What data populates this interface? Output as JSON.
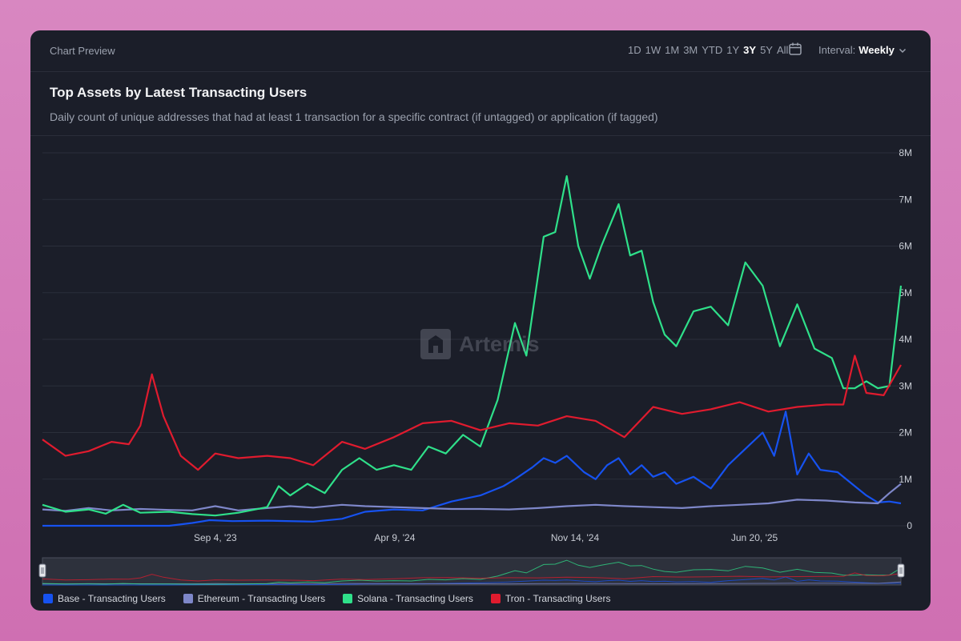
{
  "header": {
    "preview_label": "Chart Preview",
    "ranges": [
      "1D",
      "1W",
      "1M",
      "3M",
      "YTD",
      "1Y",
      "3Y",
      "5Y",
      "All"
    ],
    "active_range": "3Y",
    "interval_label": "Interval:",
    "interval_value": "Weekly"
  },
  "watermark": "Artemis",
  "chart_data": {
    "type": "line",
    "title": "Top Assets by Latest Transacting Users",
    "subtitle": "Daily count of unique addresses that had at least 1 transaction for a specific contract (if untagged) or application (if tagged)",
    "xlabel": "",
    "ylabel": "",
    "x_start": "2023-02-06",
    "x_end": "2025-12-15",
    "x_ticks": [
      {
        "date": "2023-09-04",
        "label": "Sep 4, '23"
      },
      {
        "date": "2024-04-09",
        "label": "Apr 9, '24"
      },
      {
        "date": "2024-11-14",
        "label": "Nov 14, '24"
      },
      {
        "date": "2025-06-20",
        "label": "Jun 20, '25"
      }
    ],
    "ylim": [
      0,
      8000000
    ],
    "y_ticks": [
      {
        "value": 0,
        "label": "0"
      },
      {
        "value": 1000000,
        "label": "1M"
      },
      {
        "value": 2000000,
        "label": "2M"
      },
      {
        "value": 3000000,
        "label": "3M"
      },
      {
        "value": 4000000,
        "label": "4M"
      },
      {
        "value": 5000000,
        "label": "5M"
      },
      {
        "value": 6000000,
        "label": "6M"
      },
      {
        "value": 7000000,
        "label": "7M"
      },
      {
        "value": 8000000,
        "label": "8M"
      }
    ],
    "grid": true,
    "legend_position": "bottom-left",
    "series": [
      {
        "name": "Base - Transacting Users",
        "color": "#1652f0",
        "points": [
          [
            "2023-02-06",
            0
          ],
          [
            "2023-07-10",
            0
          ],
          [
            "2023-08-07",
            60000
          ],
          [
            "2023-08-28",
            120000
          ],
          [
            "2023-09-25",
            100000
          ],
          [
            "2023-11-06",
            110000
          ],
          [
            "2024-01-01",
            90000
          ],
          [
            "2024-02-05",
            150000
          ],
          [
            "2024-03-04",
            300000
          ],
          [
            "2024-04-08",
            350000
          ],
          [
            "2024-05-13",
            330000
          ],
          [
            "2024-06-17",
            520000
          ],
          [
            "2024-07-22",
            650000
          ],
          [
            "2024-08-19",
            850000
          ],
          [
            "2024-09-02",
            1000000
          ],
          [
            "2024-09-23",
            1250000
          ],
          [
            "2024-10-07",
            1450000
          ],
          [
            "2024-10-21",
            1350000
          ],
          [
            "2024-11-04",
            1500000
          ],
          [
            "2024-11-25",
            1150000
          ],
          [
            "2024-12-09",
            1000000
          ],
          [
            "2024-12-23",
            1300000
          ],
          [
            "2025-01-06",
            1450000
          ],
          [
            "2025-01-20",
            1100000
          ],
          [
            "2025-02-03",
            1300000
          ],
          [
            "2025-02-17",
            1050000
          ],
          [
            "2025-03-03",
            1150000
          ],
          [
            "2025-03-17",
            900000
          ],
          [
            "2025-04-07",
            1050000
          ],
          [
            "2025-04-28",
            800000
          ],
          [
            "2025-05-19",
            1300000
          ],
          [
            "2025-06-09",
            1650000
          ],
          [
            "2025-06-30",
            2000000
          ],
          [
            "2025-07-14",
            1500000
          ],
          [
            "2025-07-28",
            2450000
          ],
          [
            "2025-08-11",
            1100000
          ],
          [
            "2025-08-25",
            1550000
          ],
          [
            "2025-09-08",
            1200000
          ],
          [
            "2025-09-29",
            1150000
          ],
          [
            "2025-10-20",
            850000
          ],
          [
            "2025-11-03",
            650000
          ],
          [
            "2025-11-17",
            500000
          ],
          [
            "2025-12-01",
            520000
          ],
          [
            "2025-12-15",
            480000
          ]
        ]
      },
      {
        "name": "Ethereum - Transacting Users",
        "color": "#7e87c9",
        "points": [
          [
            "2023-02-06",
            350000
          ],
          [
            "2023-03-06",
            320000
          ],
          [
            "2023-04-03",
            380000
          ],
          [
            "2023-05-01",
            330000
          ],
          [
            "2023-06-05",
            360000
          ],
          [
            "2023-07-10",
            340000
          ],
          [
            "2023-08-07",
            330000
          ],
          [
            "2023-09-04",
            420000
          ],
          [
            "2023-10-02",
            330000
          ],
          [
            "2023-11-06",
            380000
          ],
          [
            "2023-12-04",
            420000
          ],
          [
            "2024-01-01",
            390000
          ],
          [
            "2024-02-05",
            450000
          ],
          [
            "2024-03-04",
            420000
          ],
          [
            "2024-04-08",
            400000
          ],
          [
            "2024-05-13",
            380000
          ],
          [
            "2024-06-17",
            360000
          ],
          [
            "2024-07-22",
            360000
          ],
          [
            "2024-08-26",
            350000
          ],
          [
            "2024-09-30",
            380000
          ],
          [
            "2024-11-04",
            420000
          ],
          [
            "2024-12-09",
            450000
          ],
          [
            "2025-01-13",
            420000
          ],
          [
            "2025-02-17",
            400000
          ],
          [
            "2025-03-24",
            380000
          ],
          [
            "2025-04-28",
            420000
          ],
          [
            "2025-06-02",
            450000
          ],
          [
            "2025-07-07",
            480000
          ],
          [
            "2025-08-11",
            560000
          ],
          [
            "2025-09-15",
            540000
          ],
          [
            "2025-10-20",
            500000
          ],
          [
            "2025-11-17",
            480000
          ],
          [
            "2025-12-01",
            700000
          ],
          [
            "2025-12-15",
            900000
          ]
        ]
      },
      {
        "name": "Solana - Transacting Users",
        "color": "#2fe08a",
        "points": [
          [
            "2023-02-06",
            450000
          ],
          [
            "2023-03-06",
            300000
          ],
          [
            "2023-04-03",
            350000
          ],
          [
            "2023-04-24",
            260000
          ],
          [
            "2023-05-15",
            450000
          ],
          [
            "2023-06-05",
            280000
          ],
          [
            "2023-07-10",
            300000
          ],
          [
            "2023-08-07",
            250000
          ],
          [
            "2023-09-04",
            220000
          ],
          [
            "2023-10-02",
            280000
          ],
          [
            "2023-11-06",
            400000
          ],
          [
            "2023-11-20",
            850000
          ],
          [
            "2023-12-04",
            650000
          ],
          [
            "2023-12-25",
            900000
          ],
          [
            "2024-01-15",
            700000
          ],
          [
            "2024-02-05",
            1200000
          ],
          [
            "2024-02-26",
            1450000
          ],
          [
            "2024-03-18",
            1200000
          ],
          [
            "2024-04-08",
            1300000
          ],
          [
            "2024-04-29",
            1200000
          ],
          [
            "2024-05-20",
            1700000
          ],
          [
            "2024-06-10",
            1550000
          ],
          [
            "2024-07-01",
            1950000
          ],
          [
            "2024-07-22",
            1700000
          ],
          [
            "2024-08-12",
            2700000
          ],
          [
            "2024-09-02",
            4350000
          ],
          [
            "2024-09-16",
            3650000
          ],
          [
            "2024-10-07",
            6200000
          ],
          [
            "2024-10-21",
            6300000
          ],
          [
            "2024-11-04",
            7500000
          ],
          [
            "2024-11-18",
            6000000
          ],
          [
            "2024-12-02",
            5300000
          ],
          [
            "2024-12-16",
            6000000
          ],
          [
            "2025-01-06",
            6900000
          ],
          [
            "2025-01-20",
            5800000
          ],
          [
            "2025-02-03",
            5900000
          ],
          [
            "2025-02-17",
            4800000
          ],
          [
            "2025-03-03",
            4100000
          ],
          [
            "2025-03-17",
            3850000
          ],
          [
            "2025-04-07",
            4600000
          ],
          [
            "2025-04-28",
            4700000
          ],
          [
            "2025-05-19",
            4300000
          ],
          [
            "2025-06-09",
            5650000
          ],
          [
            "2025-06-30",
            5150000
          ],
          [
            "2025-07-21",
            3850000
          ],
          [
            "2025-08-11",
            4750000
          ],
          [
            "2025-09-01",
            3800000
          ],
          [
            "2025-09-22",
            3600000
          ],
          [
            "2025-10-06",
            2950000
          ],
          [
            "2025-10-20",
            2950000
          ],
          [
            "2025-11-03",
            3100000
          ],
          [
            "2025-11-17",
            2950000
          ],
          [
            "2025-12-01",
            3000000
          ],
          [
            "2025-12-15",
            5150000
          ]
        ]
      },
      {
        "name": "Tron - Transacting Users",
        "color": "#e01b2e",
        "points": [
          [
            "2023-02-06",
            1850000
          ],
          [
            "2023-03-06",
            1500000
          ],
          [
            "2023-04-03",
            1600000
          ],
          [
            "2023-05-01",
            1800000
          ],
          [
            "2023-05-22",
            1750000
          ],
          [
            "2023-06-05",
            2150000
          ],
          [
            "2023-06-19",
            3250000
          ],
          [
            "2023-07-03",
            2350000
          ],
          [
            "2023-07-24",
            1500000
          ],
          [
            "2023-08-14",
            1200000
          ],
          [
            "2023-09-04",
            1550000
          ],
          [
            "2023-10-02",
            1450000
          ],
          [
            "2023-11-06",
            1500000
          ],
          [
            "2023-12-04",
            1450000
          ],
          [
            "2024-01-01",
            1300000
          ],
          [
            "2024-02-05",
            1800000
          ],
          [
            "2024-03-04",
            1650000
          ],
          [
            "2024-04-08",
            1900000
          ],
          [
            "2024-05-13",
            2200000
          ],
          [
            "2024-06-17",
            2250000
          ],
          [
            "2024-07-22",
            2050000
          ],
          [
            "2024-08-26",
            2200000
          ],
          [
            "2024-09-30",
            2150000
          ],
          [
            "2024-11-04",
            2350000
          ],
          [
            "2024-12-09",
            2250000
          ],
          [
            "2025-01-13",
            1900000
          ],
          [
            "2025-02-17",
            2550000
          ],
          [
            "2025-03-24",
            2400000
          ],
          [
            "2025-04-28",
            2500000
          ],
          [
            "2025-06-02",
            2650000
          ],
          [
            "2025-07-07",
            2450000
          ],
          [
            "2025-08-11",
            2550000
          ],
          [
            "2025-09-15",
            2600000
          ],
          [
            "2025-10-06",
            2600000
          ],
          [
            "2025-10-20",
            3650000
          ],
          [
            "2025-11-03",
            2850000
          ],
          [
            "2025-11-24",
            2800000
          ],
          [
            "2025-12-15",
            3450000
          ]
        ]
      }
    ]
  }
}
